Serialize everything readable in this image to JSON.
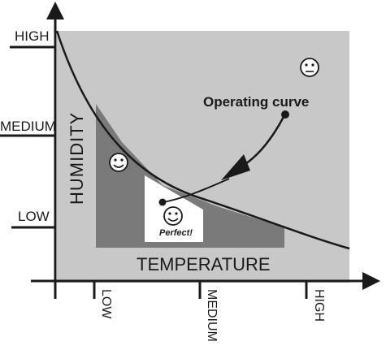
{
  "axes": {
    "y_label": "HUMIDITY",
    "x_label": "TEMPERATURE",
    "y_ticks": [
      "HIGH",
      "MEDIUM",
      "LOW"
    ],
    "x_ticks": [
      "LOW",
      "MEDIUM",
      "HIGH"
    ]
  },
  "annotations": {
    "curve_label": "Operating curve",
    "sweet_spot_label": "Perfect!"
  },
  "icons": {
    "neutral_face": "neutral-face-icon",
    "happy_face": "smiley-face-icon",
    "perfect_face": "smiley-face-icon"
  },
  "colors": {
    "outer_region": "#c8c8c8",
    "inner_region": "#7a7a7a",
    "perfect_region": "#ffffff",
    "lines": "#1a1a1a"
  }
}
